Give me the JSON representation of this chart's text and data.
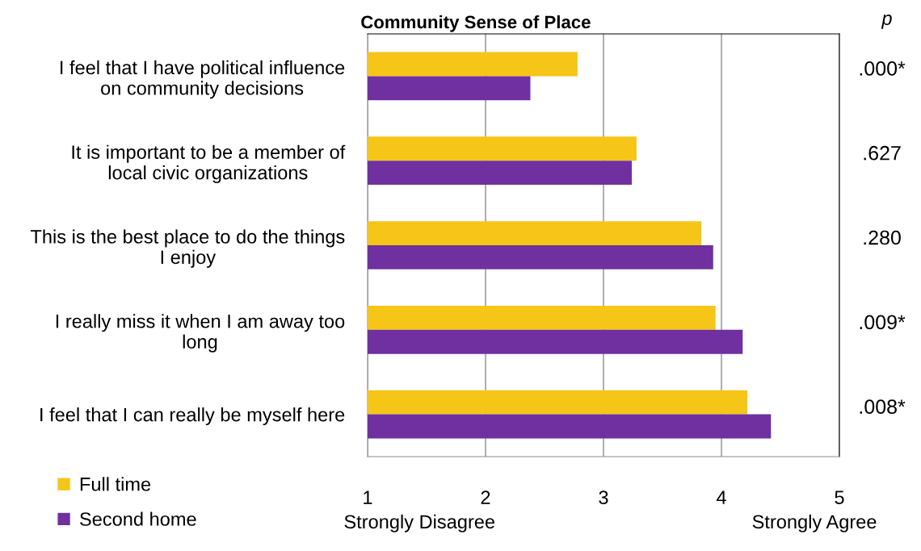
{
  "chart_data": {
    "type": "bar",
    "orientation": "horizontal",
    "title": "Community Sense of Place",
    "categories": [
      "I feel that I have political influence\non community decisions",
      "It is important to be a member of\nlocal civic organizations",
      "This is the best place to do the things\nI enjoy",
      "I really miss it when I am away too\nlong",
      "I feel that I can really be myself here"
    ],
    "series": [
      {
        "name": "Full time",
        "color": "#f5c518",
        "values": [
          2.78,
          3.28,
          3.83,
          3.95,
          4.22
        ]
      },
      {
        "name": "Second home",
        "color": "#7030a0",
        "values": [
          2.38,
          3.24,
          3.93,
          4.18,
          4.42
        ]
      }
    ],
    "xlim": [
      1,
      5
    ],
    "xticks": [
      1,
      2,
      3,
      4,
      5
    ],
    "grid": "x",
    "legend": "bottom left",
    "annotations": [
      "p",
      ".000*",
      ".627",
      ".280",
      ".009*",
      ".008*",
      "Strongly Disagree",
      "Strongly Agree"
    ]
  }
}
